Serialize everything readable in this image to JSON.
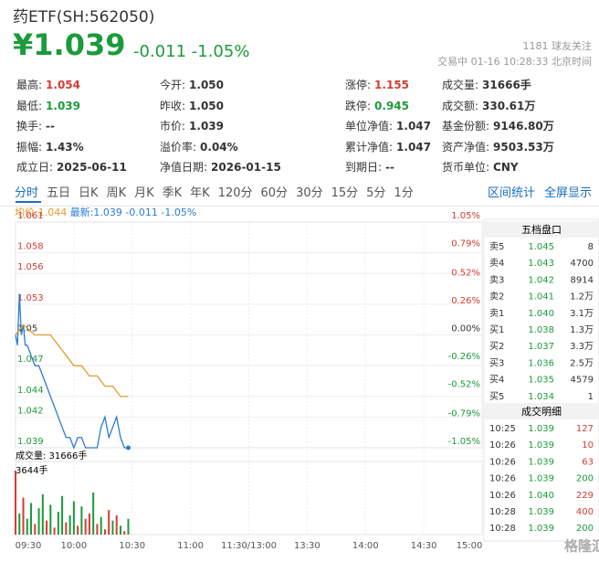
{
  "header": {
    "title": "药ETF(SH:562050)",
    "price": "¥1.039",
    "change": "-0.011",
    "change_pct": "-1.05%",
    "followers": "1181 球友关注",
    "status": "交易中 01-16 10:28:33 北京时间"
  },
  "stats": [
    {
      "label": "最高:",
      "value": "1.054",
      "color": "#d43c33"
    },
    {
      "label": "今开:",
      "value": "1.050"
    },
    {
      "label": "涨停:",
      "value": "1.155",
      "color": "#d43c33"
    },
    {
      "label": "成交量:",
      "value": "31666手"
    },
    {
      "label": "最低:",
      "value": "1.039",
      "color": "#1b9b3b"
    },
    {
      "label": "昨收:",
      "value": "1.050"
    },
    {
      "label": "跌停:",
      "value": "0.945",
      "color": "#1b9b3b"
    },
    {
      "label": "成交额:",
      "value": "330.61万"
    },
    {
      "label": "换手:",
      "value": "--"
    },
    {
      "label": "市价:",
      "value": "1.039"
    },
    {
      "label": "单位净值:",
      "value": "1.047"
    },
    {
      "label": "基金份额:",
      "value": "9146.80万"
    },
    {
      "label": "振幅:",
      "value": "1.43%"
    },
    {
      "label": "溢价率:",
      "value": "0.04%"
    },
    {
      "label": "累计净值:",
      "value": "1.047"
    },
    {
      "label": "资产净值:",
      "value": "9503.53万"
    },
    {
      "label": "成立日:",
      "value": "2025-06-11"
    },
    {
      "label": "净值日期:",
      "value": "2026-01-15"
    },
    {
      "label": "到期日:",
      "value": "--"
    },
    {
      "label": "货币单位:",
      "value": "CNY"
    }
  ],
  "tabs": [
    "分时",
    "五日",
    "日K",
    "周K",
    "月K",
    "季K",
    "年K",
    "120分",
    "60分",
    "30分",
    "15分",
    "5分",
    "1分"
  ],
  "tab_links": [
    "区间统计",
    "全屏显示"
  ],
  "legend": {
    "avg": "均价:1.044",
    "latest": "最新:1.039 -0.011 -1.05%"
  },
  "order_book": {
    "title": "五档盘口",
    "rows": [
      [
        "卖5",
        "1.045",
        "8"
      ],
      [
        "卖4",
        "1.043",
        "4700"
      ],
      [
        "卖3",
        "1.042",
        "8914"
      ],
      [
        "卖2",
        "1.041",
        "1.2万"
      ],
      [
        "卖1",
        "1.040",
        "3.1万"
      ],
      [
        "买1",
        "1.038",
        "1.3万"
      ],
      [
        "买2",
        "1.037",
        "3.3万"
      ],
      [
        "买3",
        "1.036",
        "2.5万"
      ],
      [
        "买4",
        "1.035",
        "4579"
      ],
      [
        "买5",
        "1.034",
        "1"
      ]
    ]
  },
  "trades": {
    "title": "成交明细",
    "rows": [
      [
        "10:25",
        "1.039",
        "127"
      ],
      [
        "10:26",
        "1.039",
        "10"
      ],
      [
        "10:26",
        "1.039",
        "63"
      ],
      [
        "10:26",
        "1.039",
        "200"
      ],
      [
        "10:26",
        "1.040",
        "229"
      ],
      [
        "10:28",
        "1.039",
        "400"
      ],
      [
        "10:28",
        "1.039",
        "200"
      ]
    ]
  },
  "watermark": "格隆汇",
  "chart_data": [
    {
      "type": "line",
      "xlim": [
        0,
        240
      ],
      "ylim": [
        1.039,
        1.061
      ],
      "yticks": [
        1.061,
        1.058,
        1.056,
        1.053,
        1.05,
        1.047,
        1.044,
        1.042,
        1.039
      ],
      "y2lim": [
        -1.05,
        1.05
      ],
      "y2ticks": [
        {
          "value": 1.05,
          "label": "1.05%"
        },
        {
          "value": 0.79,
          "label": "0.79%"
        },
        {
          "value": 0.52,
          "label": "0.52%"
        },
        {
          "value": 0.26,
          "label": "0.26%"
        },
        {
          "value": 0,
          "label": "0.00%"
        },
        {
          "value": -0.26,
          "label": "-0.26%"
        },
        {
          "value": -0.52,
          "label": "-0.52%"
        },
        {
          "value": -0.79,
          "label": "-0.79%"
        },
        {
          "value": -1.05,
          "label": "-1.05%"
        }
      ],
      "grid": true,
      "series": [
        {
          "color": "#2b7bd1",
          "x": [
            0,
            1,
            2,
            3,
            4,
            5,
            6,
            8,
            10,
            12,
            14,
            16,
            18,
            20,
            22,
            24,
            26,
            28,
            30,
            32,
            34,
            36,
            38,
            40,
            42,
            44,
            46,
            48,
            50,
            52,
            54,
            56,
            58
          ],
          "values": [
            1.05,
            1.049,
            1.054,
            1.05,
            1.051,
            1.049,
            1.049,
            1.048,
            1.047,
            1.047,
            1.046,
            1.045,
            1.044,
            1.043,
            1.042,
            1.041,
            1.04,
            1.04,
            1.039,
            1.04,
            1.04,
            1.039,
            1.039,
            1.039,
            1.039,
            1.041,
            1.042,
            1.04,
            1.041,
            1.042,
            1.04,
            1.039,
            1.039
          ]
        },
        {
          "color": "#e39b2b",
          "x": [
            0,
            4,
            10,
            18,
            22,
            26,
            30,
            34,
            38,
            42,
            46,
            50,
            54,
            58
          ],
          "values": [
            1.05,
            1.051,
            1.05,
            1.05,
            1.049,
            1.048,
            1.047,
            1.047,
            1.046,
            1.046,
            1.045,
            1.045,
            1.044,
            1.044
          ]
        }
      ]
    },
    {
      "type": "bar",
      "title": "成交量: 31666手",
      "xlim": [
        0,
        240
      ],
      "xticks": [
        {
          "value": 0,
          "label": "09:30"
        },
        {
          "value": 30,
          "label": "10:00"
        },
        {
          "value": 60,
          "label": "10:30"
        },
        {
          "value": 90,
          "label": "11:00"
        },
        {
          "value": 120,
          "label": "11:30/13:00"
        },
        {
          "value": 150,
          "label": "13:30"
        },
        {
          "value": 180,
          "label": "14:00"
        },
        {
          "value": 210,
          "label": "14:30"
        },
        {
          "value": 240,
          "label": "15:00"
        }
      ],
      "ylim": [
        0,
        3644
      ],
      "yticks": [
        {
          "value": 3644,
          "label": "3644手"
        }
      ],
      "x": [
        0,
        2,
        4,
        6,
        8,
        10,
        12,
        14,
        16,
        18,
        20,
        22,
        24,
        26,
        28,
        30,
        32,
        34,
        36,
        38,
        40,
        42,
        44,
        46,
        48,
        50,
        52,
        54,
        56,
        58
      ],
      "values": [
        3644,
        1200,
        2100,
        900,
        1800,
        600,
        1500,
        2300,
        800,
        1700,
        400,
        1300,
        2200,
        700,
        1100,
        1900,
        500,
        1600,
        900,
        1200,
        2400,
        600,
        1000,
        300,
        1400,
        800,
        1100,
        500,
        200,
        900
      ],
      "colors": [
        "#d43c33",
        "#1b9b3b",
        "#d43c33",
        "#1b9b3b",
        "#1b9b3b",
        "#d43c33",
        "#1b9b3b",
        "#1b9b3b",
        "#d43c33",
        "#1b9b3b",
        "#d43c33",
        "#1b9b3b",
        "#1b9b3b",
        "#d43c33",
        "#1b9b3b",
        "#1b9b3b",
        "#d43c33",
        "#1b9b3b",
        "#d43c33",
        "#d43c33",
        "#1b9b3b",
        "#d43c33",
        "#1b9b3b",
        "#d43c33",
        "#d43c33",
        "#1b9b3b",
        "#d43c33",
        "#1b9b3b",
        "#d43c33",
        "#1b9b3b"
      ]
    }
  ]
}
